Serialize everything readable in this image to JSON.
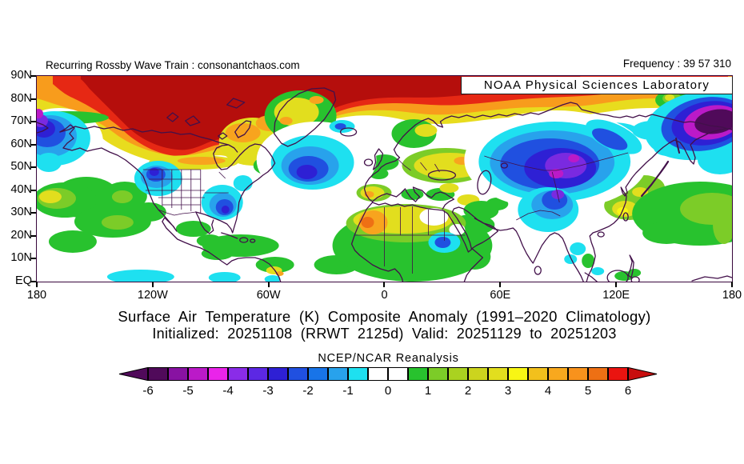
{
  "header": {
    "left_text": "Recurring Rossby Wave Train : consonantchaos.com",
    "right_text": "Frequency : 39 57 310"
  },
  "map": {
    "overlay_label": "NOAA Physical Sciences Laboratory",
    "lat_labels": [
      "90N",
      "80N",
      "70N",
      "60N",
      "50N",
      "40N",
      "30N",
      "20N",
      "10N",
      "EQ"
    ],
    "lon_labels": [
      "180",
      "120W",
      "60W",
      "0",
      "60E",
      "120E",
      "180"
    ],
    "frame_color": "#38073c",
    "coastline_color": "#42104a"
  },
  "titles": {
    "line1": "Surface Air Temperature (K) Composite Anomaly (1991–2020 Climatology)",
    "line2": "Initialized: 20251108 (RRWT 2125d) Valid: 20251129 to 20251203"
  },
  "colorbar": {
    "label": "NCEP/NCAR Reanalysis",
    "tick_labels": [
      "-6",
      "-5",
      "-4",
      "-3",
      "-2",
      "-1",
      "0",
      "1",
      "2",
      "3",
      "4",
      "5",
      "6"
    ],
    "cell_colors": [
      "#500a5a",
      "#8812a2",
      "#bb1ac8",
      "#ea24ea",
      "#8a2ce8",
      "#5c28e4",
      "#2e20d4",
      "#2050e0",
      "#1874e8",
      "#28a2ec",
      "#1ee0f0",
      "#ffffff",
      "#ffffff",
      "#28c22e",
      "#7ccc28",
      "#aad220",
      "#ccd41e",
      "#e2de1e",
      "#f8f614",
      "#f2c01c",
      "#f8a81e",
      "#f8921c",
      "#ee7014",
      "#ea1410"
    ],
    "left_arrow_color": "#500a5a",
    "right_arrow_color": "#c80e0e"
  },
  "chart_data": {
    "type": "heatmap",
    "title": "Surface Air Temperature (K) Composite Anomaly (1991–2020 Climatology)",
    "subtitle": "Initialized: 20251108 (RRWT 2125d) Valid: 20251129 to 20251203",
    "dataset": "NCEP/NCAR Reanalysis",
    "units": "K",
    "colorbar_range": [
      -6,
      6
    ],
    "colorbar_interval": 0.5,
    "colorbar_tick_values": [
      -6,
      -5,
      -4,
      -3,
      -2,
      -1,
      0,
      1,
      2,
      3,
      4,
      5,
      6
    ],
    "lat_ticks": [
      "90N",
      "80N",
      "70N",
      "60N",
      "50N",
      "40N",
      "30N",
      "20N",
      "10N",
      "EQ"
    ],
    "lon_ticks": [
      "180",
      "120W",
      "60W",
      "0",
      "60E",
      "120E",
      "180"
    ],
    "notable_anomalies": [
      {
        "region": "Arctic band 75-90N across most longitudes",
        "sign": "warm",
        "approx_peak_K": 6
      },
      {
        "region": "Alaska and northwest Canada",
        "sign": "warm",
        "approx_peak_K": 6
      },
      {
        "region": "Bering Sea west of Alaska",
        "sign": "cold",
        "approx_peak_K": -5
      },
      {
        "region": "Central North Atlantic 45-60N",
        "sign": "cold",
        "approx_peak_K": -3
      },
      {
        "region": "Western United States",
        "sign": "cold",
        "approx_peak_K": -3
      },
      {
        "region": "Southeastern United States",
        "sign": "cold",
        "approx_peak_K": -3
      },
      {
        "region": "Central Asia / western Siberia",
        "sign": "cold",
        "approx_peak_K": -5
      },
      {
        "region": "Northeast Siberia 55-75N 140E-180",
        "sign": "cold",
        "approx_peak_K": -6
      },
      {
        "region": "Himalaya / northern India",
        "sign": "cold",
        "approx_peak_K": -4
      },
      {
        "region": "Eastern Europe and Sahara",
        "sign": "warm",
        "approx_peak_K": 4
      },
      {
        "region": "Eastern Canada / Hudson Bay",
        "sign": "warm",
        "approx_peak_K": 3
      },
      {
        "region": "Tropics",
        "sign": "slightly warm",
        "approx_peak_K": 1
      }
    ]
  }
}
